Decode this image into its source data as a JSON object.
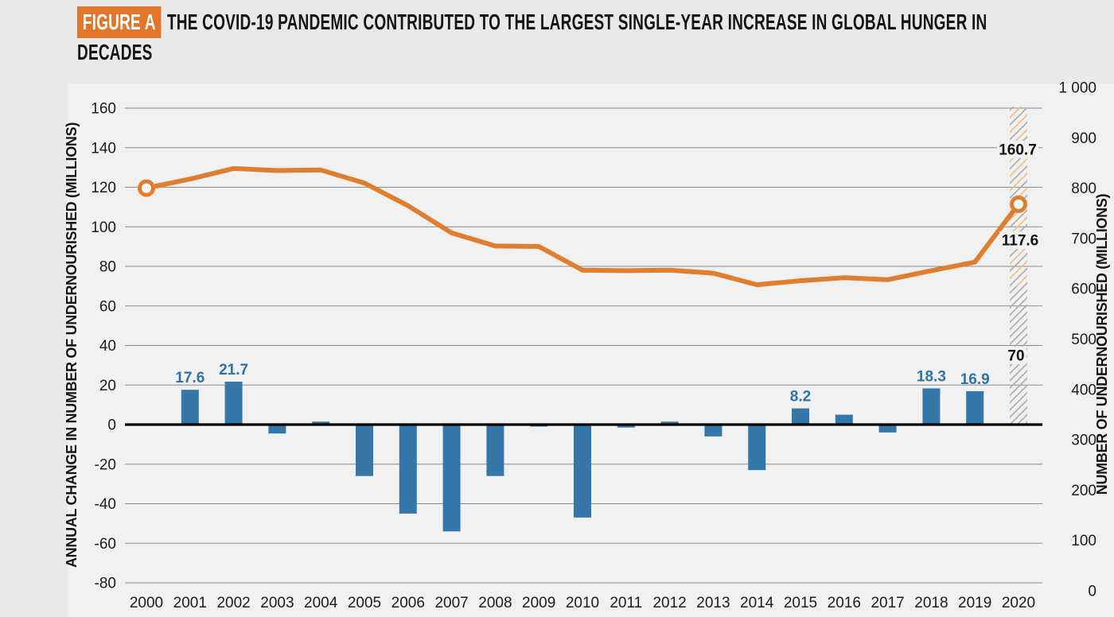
{
  "figure": {
    "badge": "FIGURE A",
    "title_line1": "THE COVID-19 PANDEMIC CONTRIBUTED TO THE LARGEST SINGLE-YEAR INCREASE IN GLOBAL HUNGER IN",
    "title_line2": "DECADES"
  },
  "chart_data": {
    "type": "bar+line",
    "categories": [
      2000,
      2001,
      2002,
      2003,
      2004,
      2005,
      2006,
      2007,
      2008,
      2009,
      2010,
      2011,
      2012,
      2013,
      2014,
      2015,
      2016,
      2017,
      2018,
      2019,
      2020
    ],
    "series": [
      {
        "name": "Annual change in number of undernourished",
        "type": "bar",
        "axis": "left",
        "values": [
          null,
          17.6,
          21.7,
          -4.5,
          1.5,
          -26,
          -45,
          -54,
          -26,
          -1,
          -47,
          -1.5,
          1.5,
          -6,
          -23,
          8.2,
          5,
          -4,
          18.3,
          16.9,
          null
        ],
        "point_labels": {
          "2001": "17.6",
          "2002": "21.7",
          "2015": "8.2",
          "2018": "18.3",
          "2019": "16.9"
        }
      },
      {
        "name": "Number of undernourished",
        "type": "line",
        "axis": "right",
        "values": [
          800,
          818,
          839,
          835,
          836,
          810,
          765,
          711,
          685,
          684,
          637,
          636,
          637,
          631,
          608,
          616,
          622,
          618,
          636,
          653,
          768
        ],
        "marker_years": [
          2000,
          2020
        ]
      }
    ],
    "projection_2020": {
      "year": 2020,
      "low": 70,
      "mid": 117.6,
      "high": 160.7,
      "labels": {
        "high": "160.7",
        "mid": "117.6",
        "low": "70"
      }
    },
    "left_axis": {
      "title": "ANNUAL CHANGE IN NUMBER OF UNDERNOURISHED (MILLIONS)",
      "min": -80,
      "max": 160,
      "tick_step": 20,
      "tick_labels": [
        "160",
        "140",
        "120",
        "100",
        "80",
        "60",
        "40",
        "20",
        "0",
        "-20",
        "-40",
        "-60",
        "-80"
      ]
    },
    "right_axis": {
      "title": "NUMBER OF UNDERNOURISHED (MILLIONS)",
      "min": 0,
      "max": 1000,
      "tick_step": 100,
      "tick_labels": [
        "1 000",
        "900",
        "800",
        "700",
        "600",
        "500",
        "400",
        "300",
        "200",
        "100",
        "0"
      ]
    },
    "grid": true,
    "legend": "none",
    "colors": {
      "bar": "#3577A8",
      "bar_label": "#2F73A6",
      "line": "#E07E30",
      "marker_fill": "#FFFFFF",
      "badge_bg": "#E2762B",
      "annotation_text": "#111111",
      "grid": "#8C8C8C",
      "zero_line": "#000000",
      "hatch_gray": "#ADADAD",
      "hatch_orange": "#EBC18C",
      "panel_bg": "#F1F1F1",
      "page_bg": "#E9E9E9",
      "tick_text": "#1C1C1C"
    }
  }
}
